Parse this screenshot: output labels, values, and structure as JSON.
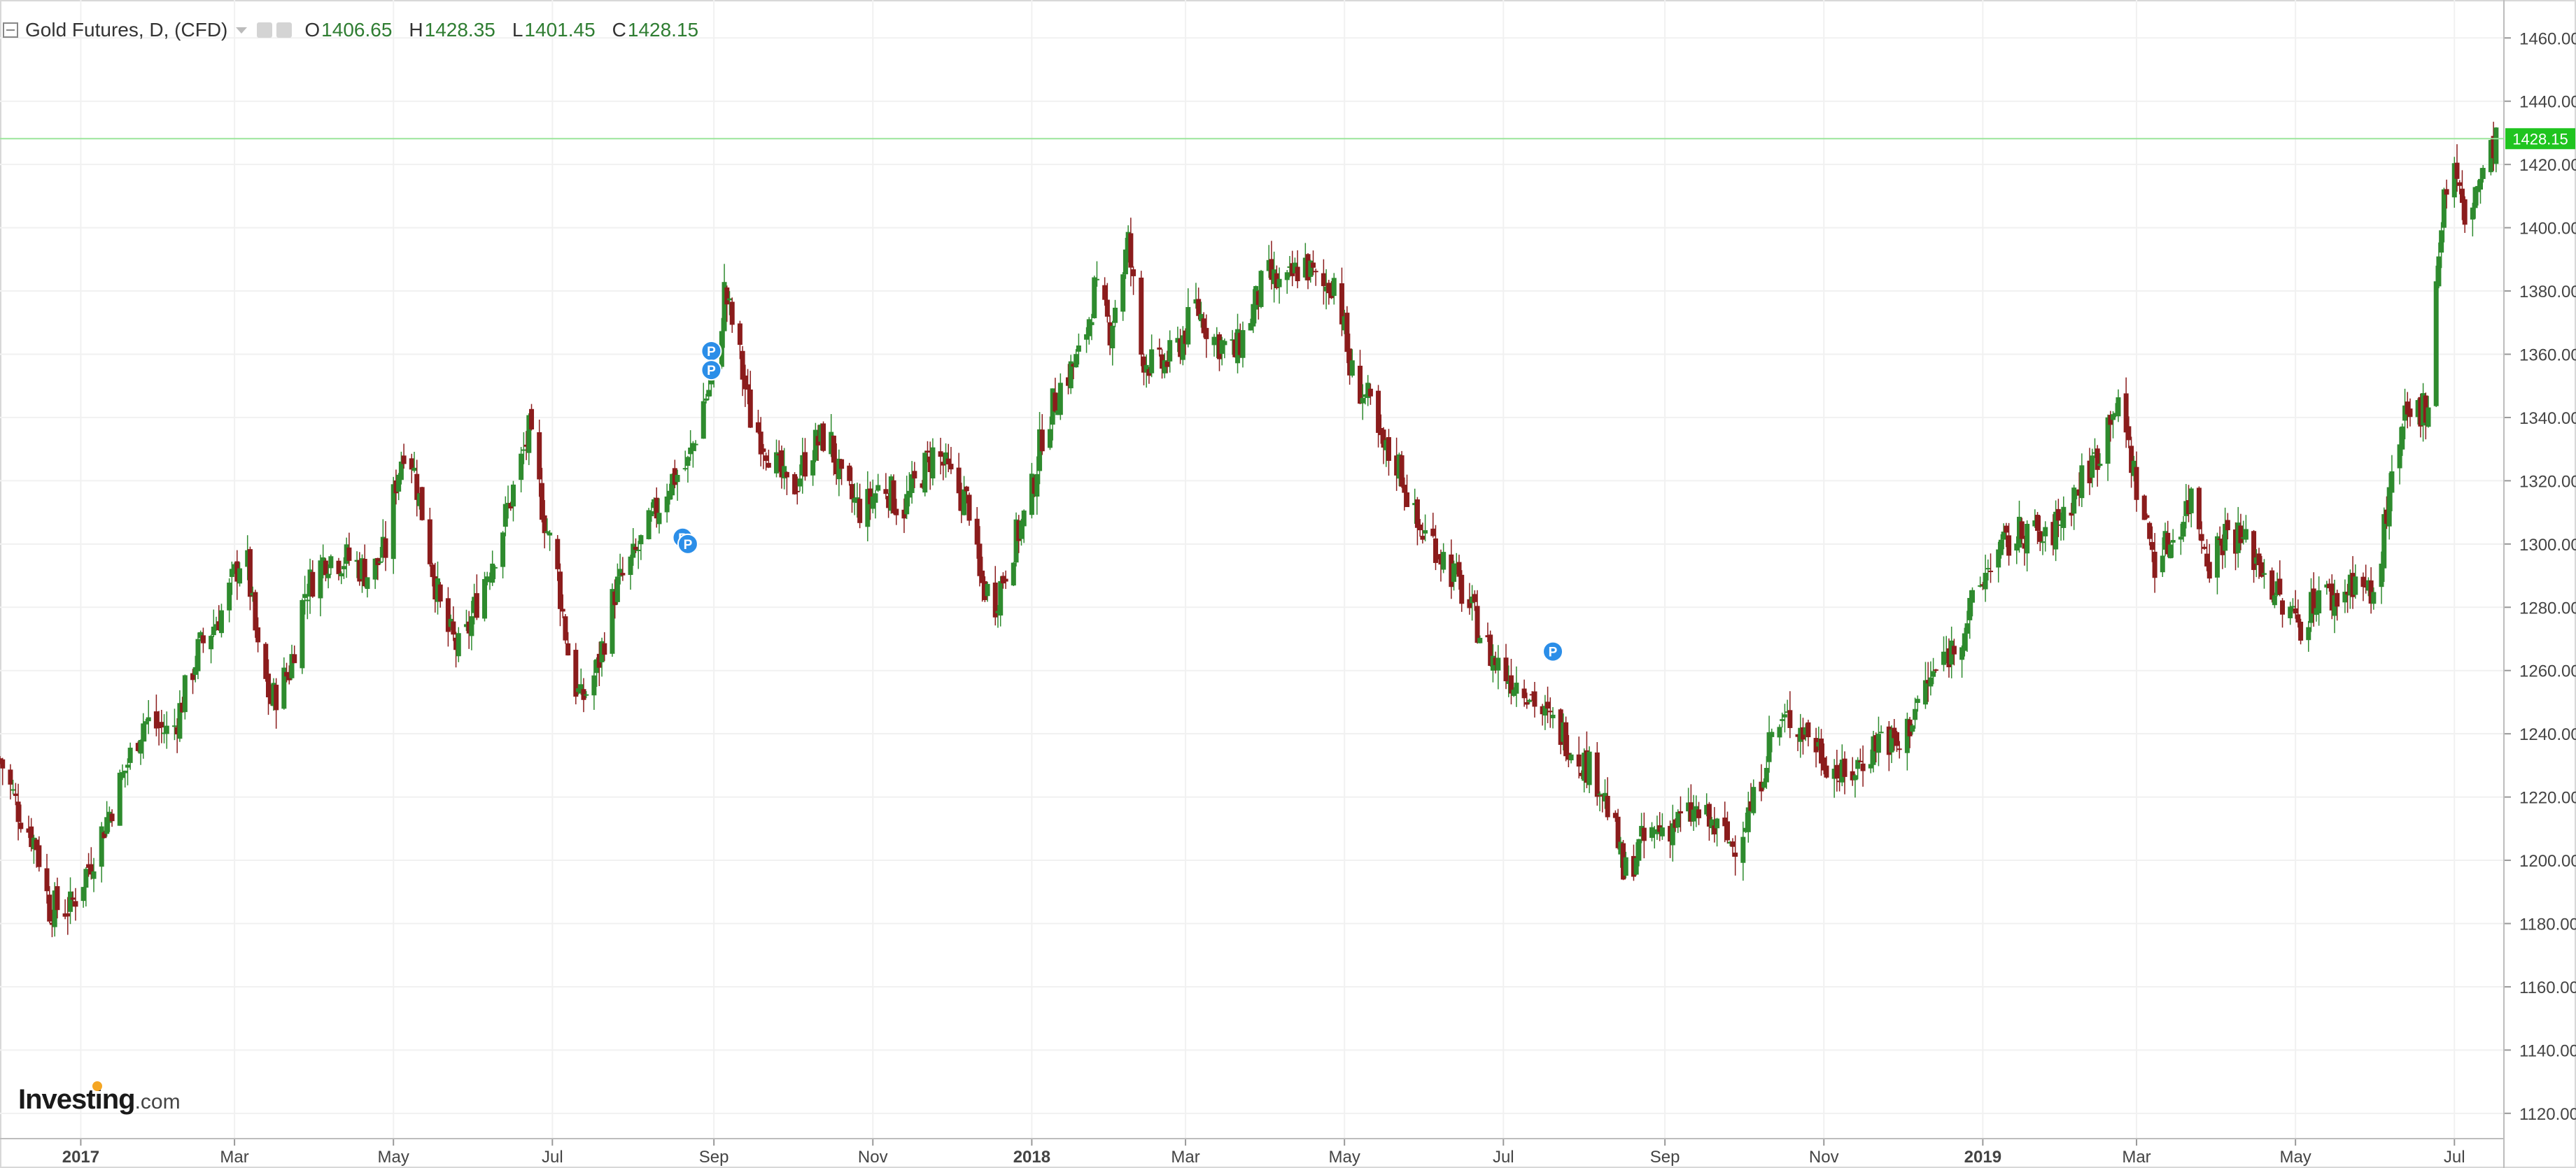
{
  "legend": {
    "title": "Gold Futures, D, (CFD)",
    "open_label": "O",
    "open_value": "1406.65",
    "high_label": "H",
    "high_value": "1428.35",
    "low_label": "L",
    "low_value": "1401.45",
    "close_label": "C",
    "close_value": "1428.15"
  },
  "logo": {
    "name": "Investing",
    "suffix": ".com"
  },
  "colors": {
    "up": "#2e8b2e",
    "down": "#8b1c1c",
    "price_line": "#9be59b",
    "price_tag": "#1fc41f",
    "marker": "#2b8ee8",
    "grid": "#f1f1f1",
    "axis_text": "#444444"
  },
  "chart_data": {
    "type": "candlestick",
    "ylim": [
      1112,
      1472
    ],
    "yticks": [
      1120,
      1140,
      1160,
      1180,
      1200,
      1220,
      1240,
      1260,
      1280,
      1300,
      1320,
      1340,
      1360,
      1380,
      1400,
      1420,
      1440,
      1460
    ],
    "ytick_labels": [
      "1120.00",
      "1140.00",
      "1160.00",
      "1180.00",
      "1200.00",
      "1220.00",
      "1240.00",
      "1260.00",
      "1280.00",
      "1300.00",
      "1320.00",
      "1340.00",
      "1360.00",
      "1380.00",
      "1400.00",
      "1420.00",
      "1440.00",
      "1460.00"
    ],
    "xlim": [
      "2016-12-01",
      "2019-07-20"
    ],
    "xticks": [
      {
        "date": "2017-01-01",
        "label": "2017",
        "bold": true
      },
      {
        "date": "2017-03-01",
        "label": "Mar"
      },
      {
        "date": "2017-05-01",
        "label": "May"
      },
      {
        "date": "2017-07-01",
        "label": "Jul"
      },
      {
        "date": "2017-09-01",
        "label": "Sep"
      },
      {
        "date": "2017-11-01",
        "label": "Nov"
      },
      {
        "date": "2018-01-01",
        "label": "2018",
        "bold": true
      },
      {
        "date": "2018-03-01",
        "label": "Mar"
      },
      {
        "date": "2018-05-01",
        "label": "May"
      },
      {
        "date": "2018-07-01",
        "label": "Jul"
      },
      {
        "date": "2018-09-01",
        "label": "Sep"
      },
      {
        "date": "2018-11-01",
        "label": "Nov"
      },
      {
        "date": "2019-01-01",
        "label": "2019",
        "bold": true
      },
      {
        "date": "2019-03-01",
        "label": "Mar"
      },
      {
        "date": "2019-05-01",
        "label": "May"
      },
      {
        "date": "2019-07-01",
        "label": "Jul"
      }
    ],
    "last_price": 1428.15,
    "last_price_label": "1428.15",
    "close_series": [
      [
        "2016-12-01",
        1232
      ],
      [
        "2016-12-08",
        1216
      ],
      [
        "2016-12-15",
        1205
      ],
      [
        "2016-12-20",
        1185
      ],
      [
        "2016-12-28",
        1185
      ],
      [
        "2017-01-05",
        1200
      ],
      [
        "2017-01-15",
        1222
      ],
      [
        "2017-01-25",
        1244
      ],
      [
        "2017-02-05",
        1240
      ],
      [
        "2017-02-15",
        1266
      ],
      [
        "2017-02-25",
        1280
      ],
      [
        "2017-03-05",
        1300
      ],
      [
        "2017-03-10",
        1265
      ],
      [
        "2017-03-15",
        1250
      ],
      [
        "2017-03-22",
        1260
      ],
      [
        "2017-03-28",
        1285
      ],
      [
        "2017-04-05",
        1296
      ],
      [
        "2017-04-15",
        1295
      ],
      [
        "2017-04-22",
        1290
      ],
      [
        "2017-04-28",
        1298
      ],
      [
        "2017-05-02",
        1320
      ],
      [
        "2017-05-06",
        1335
      ],
      [
        "2017-05-12",
        1310
      ],
      [
        "2017-05-20",
        1275
      ],
      [
        "2017-05-27",
        1265
      ],
      [
        "2017-06-03",
        1285
      ],
      [
        "2017-06-10",
        1300
      ],
      [
        "2017-06-17",
        1320
      ],
      [
        "2017-06-22",
        1335
      ],
      [
        "2017-06-28",
        1308
      ],
      [
        "2017-07-03",
        1290
      ],
      [
        "2017-07-08",
        1260
      ],
      [
        "2017-07-12",
        1250
      ],
      [
        "2017-07-18",
        1260
      ],
      [
        "2017-07-25",
        1285
      ],
      [
        "2017-08-01",
        1295
      ],
      [
        "2017-08-07",
        1305
      ],
      [
        "2017-08-15",
        1320
      ],
      [
        "2017-08-22",
        1325
      ],
      [
        "2017-08-28",
        1345
      ],
      [
        "2017-09-02",
        1355
      ],
      [
        "2017-09-05",
        1380
      ],
      [
        "2017-09-10",
        1363
      ],
      [
        "2017-09-15",
        1340
      ],
      [
        "2017-09-22",
        1330
      ],
      [
        "2017-09-30",
        1315
      ],
      [
        "2017-10-08",
        1330
      ],
      [
        "2017-10-15",
        1335
      ],
      [
        "2017-10-20",
        1318
      ],
      [
        "2017-10-28",
        1310
      ],
      [
        "2017-11-05",
        1320
      ],
      [
        "2017-11-12",
        1310
      ],
      [
        "2017-11-18",
        1320
      ],
      [
        "2017-11-25",
        1330
      ],
      [
        "2017-12-01",
        1320
      ],
      [
        "2017-12-08",
        1312
      ],
      [
        "2017-12-12",
        1288
      ],
      [
        "2017-12-18",
        1282
      ],
      [
        "2017-12-25",
        1300
      ],
      [
        "2017-12-31",
        1312
      ],
      [
        "2018-01-05",
        1335
      ],
      [
        "2018-01-12",
        1350
      ],
      [
        "2018-01-20",
        1360
      ],
      [
        "2018-01-25",
        1380
      ],
      [
        "2018-01-31",
        1368
      ],
      [
        "2018-02-07",
        1395
      ],
      [
        "2018-02-12",
        1360
      ],
      [
        "2018-02-18",
        1355
      ],
      [
        "2018-02-25",
        1360
      ],
      [
        "2018-03-05",
        1375
      ],
      [
        "2018-03-12",
        1365
      ],
      [
        "2018-03-20",
        1360
      ],
      [
        "2018-03-25",
        1370
      ],
      [
        "2018-04-01",
        1385
      ],
      [
        "2018-04-08",
        1380
      ],
      [
        "2018-04-15",
        1390
      ],
      [
        "2018-04-22",
        1380
      ],
      [
        "2018-04-28",
        1385
      ],
      [
        "2018-05-03",
        1355
      ],
      [
        "2018-05-10",
        1345
      ],
      [
        "2018-05-15",
        1330
      ],
      [
        "2018-05-22",
        1325
      ],
      [
        "2018-05-29",
        1305
      ],
      [
        "2018-06-05",
        1300
      ],
      [
        "2018-06-12",
        1290
      ],
      [
        "2018-06-19",
        1278
      ],
      [
        "2018-06-26",
        1265
      ],
      [
        "2018-07-03",
        1258
      ],
      [
        "2018-07-10",
        1255
      ],
      [
        "2018-07-17",
        1245
      ],
      [
        "2018-07-24",
        1240
      ],
      [
        "2018-07-31",
        1232
      ],
      [
        "2018-08-07",
        1225
      ],
      [
        "2018-08-14",
        1205
      ],
      [
        "2018-08-16",
        1195
      ],
      [
        "2018-08-23",
        1205
      ],
      [
        "2018-08-30",
        1210
      ],
      [
        "2018-09-06",
        1212
      ],
      [
        "2018-09-13",
        1215
      ],
      [
        "2018-09-20",
        1210
      ],
      [
        "2018-09-27",
        1205
      ],
      [
        "2018-10-05",
        1218
      ],
      [
        "2018-10-12",
        1240
      ],
      [
        "2018-10-19",
        1245
      ],
      [
        "2018-10-26",
        1240
      ],
      [
        "2018-11-02",
        1232
      ],
      [
        "2018-11-09",
        1225
      ],
      [
        "2018-11-16",
        1232
      ],
      [
        "2018-11-23",
        1240
      ],
      [
        "2018-11-30",
        1235
      ],
      [
        "2018-12-07",
        1250
      ],
      [
        "2018-12-14",
        1260
      ],
      [
        "2018-12-21",
        1268
      ],
      [
        "2018-12-28",
        1280
      ],
      [
        "2019-01-04",
        1295
      ],
      [
        "2019-01-11",
        1300
      ],
      [
        "2019-01-18",
        1305
      ],
      [
        "2019-01-25",
        1300
      ],
      [
        "2019-02-01",
        1310
      ],
      [
        "2019-02-08",
        1320
      ],
      [
        "2019-02-15",
        1330
      ],
      [
        "2019-02-20",
        1345
      ],
      [
        "2019-02-25",
        1335
      ],
      [
        "2019-03-01",
        1318
      ],
      [
        "2019-03-08",
        1295
      ],
      [
        "2019-03-15",
        1302
      ],
      [
        "2019-03-22",
        1315
      ],
      [
        "2019-03-29",
        1295
      ],
      [
        "2019-04-05",
        1305
      ],
      [
        "2019-04-12",
        1300
      ],
      [
        "2019-04-19",
        1292
      ],
      [
        "2019-04-26",
        1280
      ],
      [
        "2019-05-03",
        1275
      ],
      [
        "2019-05-10",
        1285
      ],
      [
        "2019-05-17",
        1282
      ],
      [
        "2019-05-24",
        1290
      ],
      [
        "2019-05-31",
        1282
      ],
      [
        "2019-06-05",
        1310
      ],
      [
        "2019-06-12",
        1338
      ],
      [
        "2019-06-17",
        1342
      ],
      [
        "2019-06-21",
        1345
      ],
      [
        "2019-06-24",
        1385
      ],
      [
        "2019-06-27",
        1410
      ],
      [
        "2019-07-01",
        1420
      ],
      [
        "2019-07-05",
        1400
      ],
      [
        "2019-07-09",
        1412
      ],
      [
        "2019-07-13",
        1418
      ],
      [
        "2019-07-17",
        1428.15
      ]
    ],
    "markers": [
      {
        "date": "2017-08-20",
        "price": 1302,
        "label": "P"
      },
      {
        "date": "2017-08-22",
        "price": 1300,
        "label": "P"
      },
      {
        "date": "2017-08-31",
        "price": 1361,
        "label": "P"
      },
      {
        "date": "2017-08-31",
        "price": 1355,
        "label": "P"
      },
      {
        "date": "2018-07-20",
        "price": 1266,
        "label": "P"
      }
    ]
  }
}
